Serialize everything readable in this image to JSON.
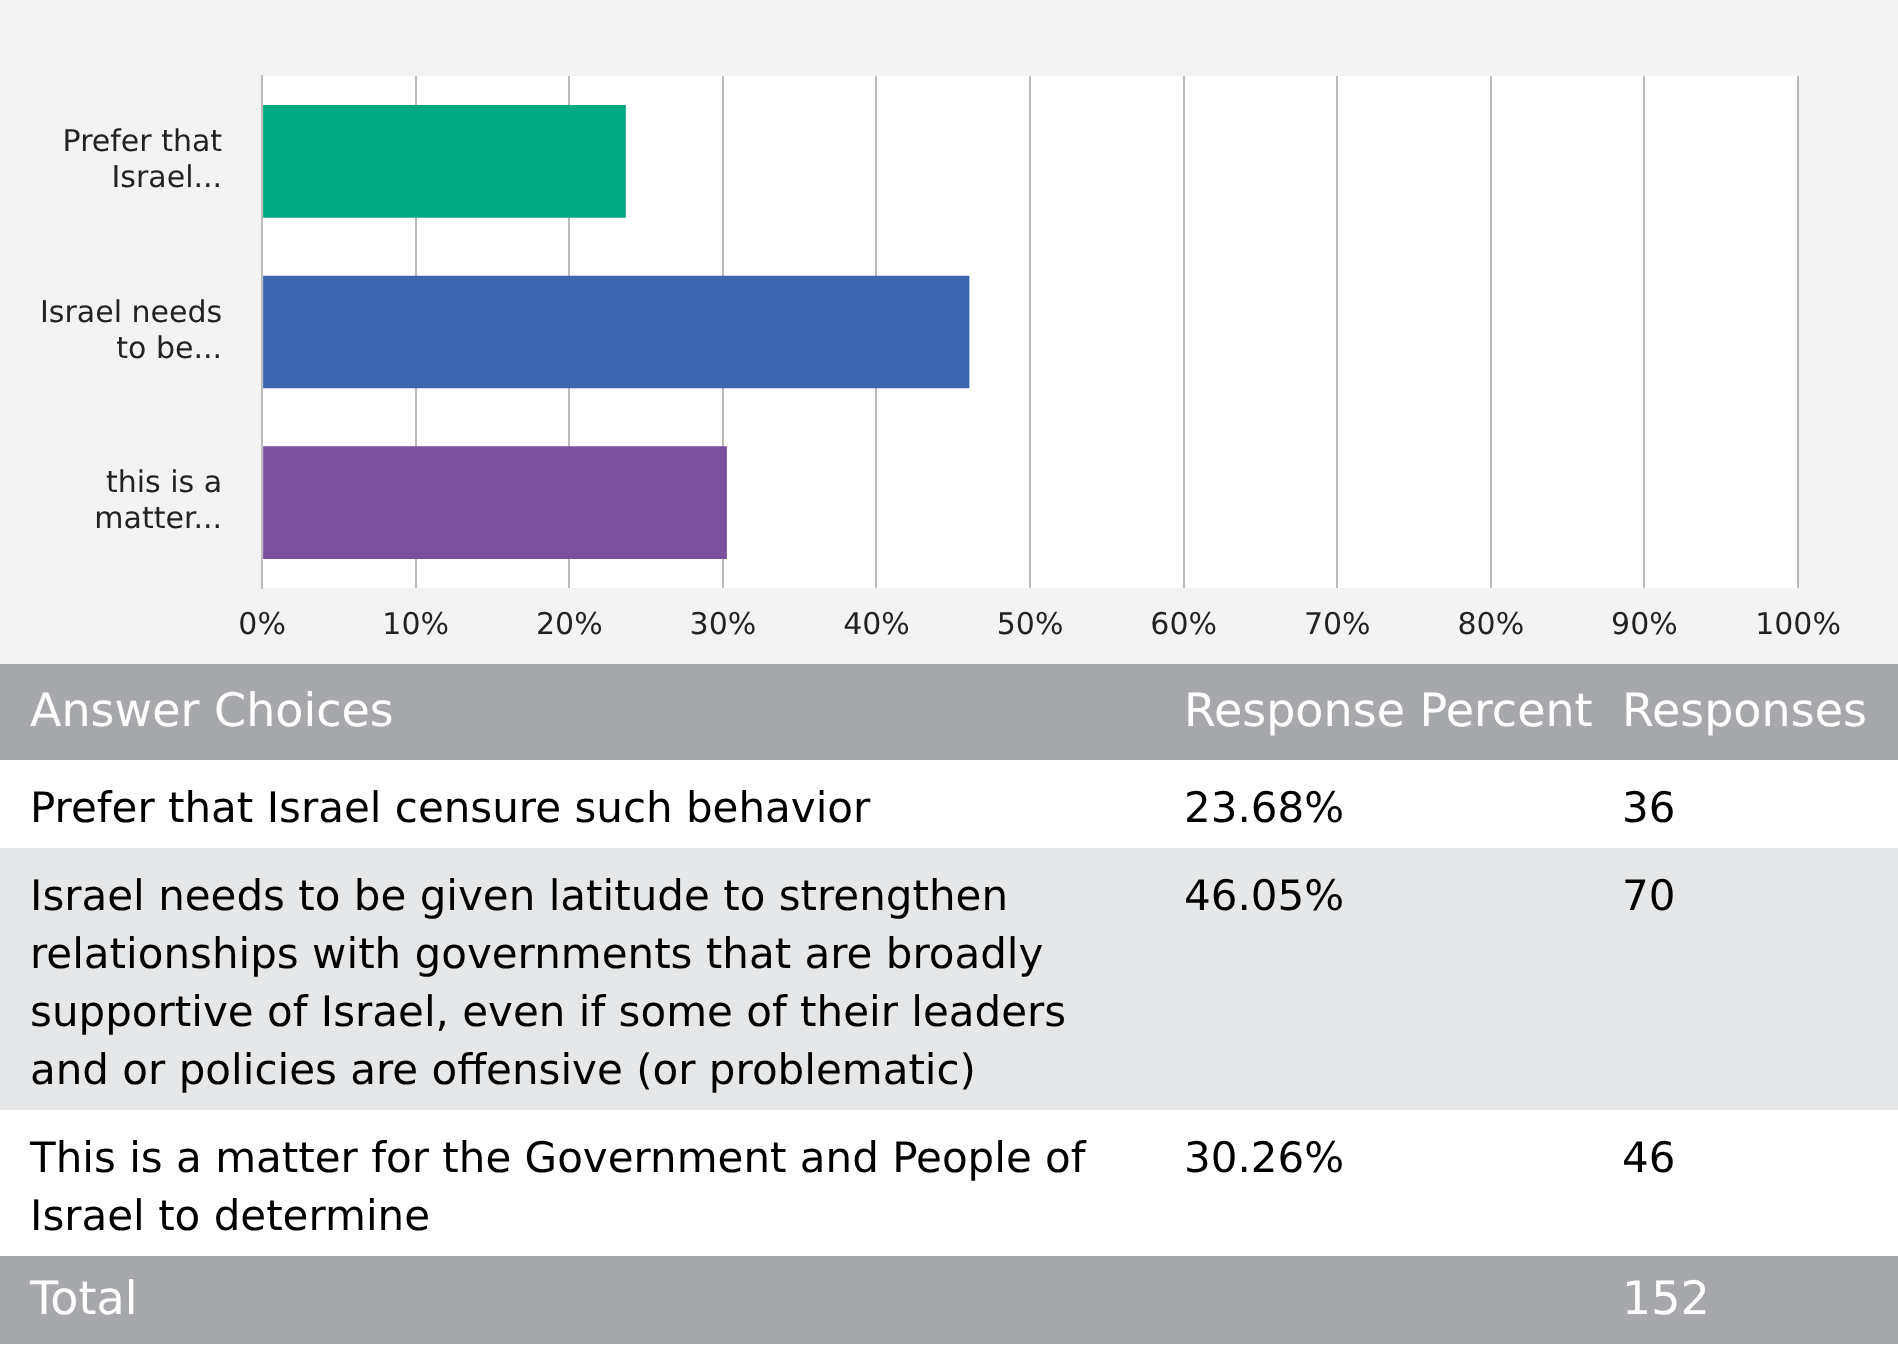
{
  "chart_data": {
    "type": "bar",
    "orientation": "horizontal",
    "categories": [
      "Prefer that Israel...",
      "Israel needs to be...",
      "this is a matter..."
    ],
    "values": [
      23.68,
      46.05,
      30.26
    ],
    "colors": [
      "#00a97f",
      "#3e66ae",
      "#7b4f9e"
    ],
    "xlim": [
      0,
      100
    ],
    "xticks": [
      {
        "value": 0,
        "label": "0%"
      },
      {
        "value": 10,
        "label": "10%"
      },
      {
        "value": 20,
        "label": "20%"
      },
      {
        "value": 30,
        "label": "30%"
      },
      {
        "value": 40,
        "label": "40%"
      },
      {
        "value": 50,
        "label": "50%"
      },
      {
        "value": 60,
        "label": "60%"
      },
      {
        "value": 70,
        "label": "70%"
      },
      {
        "value": 80,
        "label": "80%"
      },
      {
        "value": 90,
        "label": "90%"
      },
      {
        "value": 100,
        "label": "100%"
      }
    ],
    "grid": "x",
    "annotations": [
      "Answer Choices",
      "Response Percent",
      "Responses",
      "Prefer that Israel censure such behavior",
      "Israel needs to be given latitude to strengthen relationships with governments that are broadly supportive of Israel, even if some of their leaders and or policies are offensive (or problematic)",
      "This is a matter for the Government and People of Israel to determine",
      "23.68%",
      "46.05%",
      "30.26%",
      "36",
      "70",
      "46",
      "Total",
      "152"
    ]
  }
}
